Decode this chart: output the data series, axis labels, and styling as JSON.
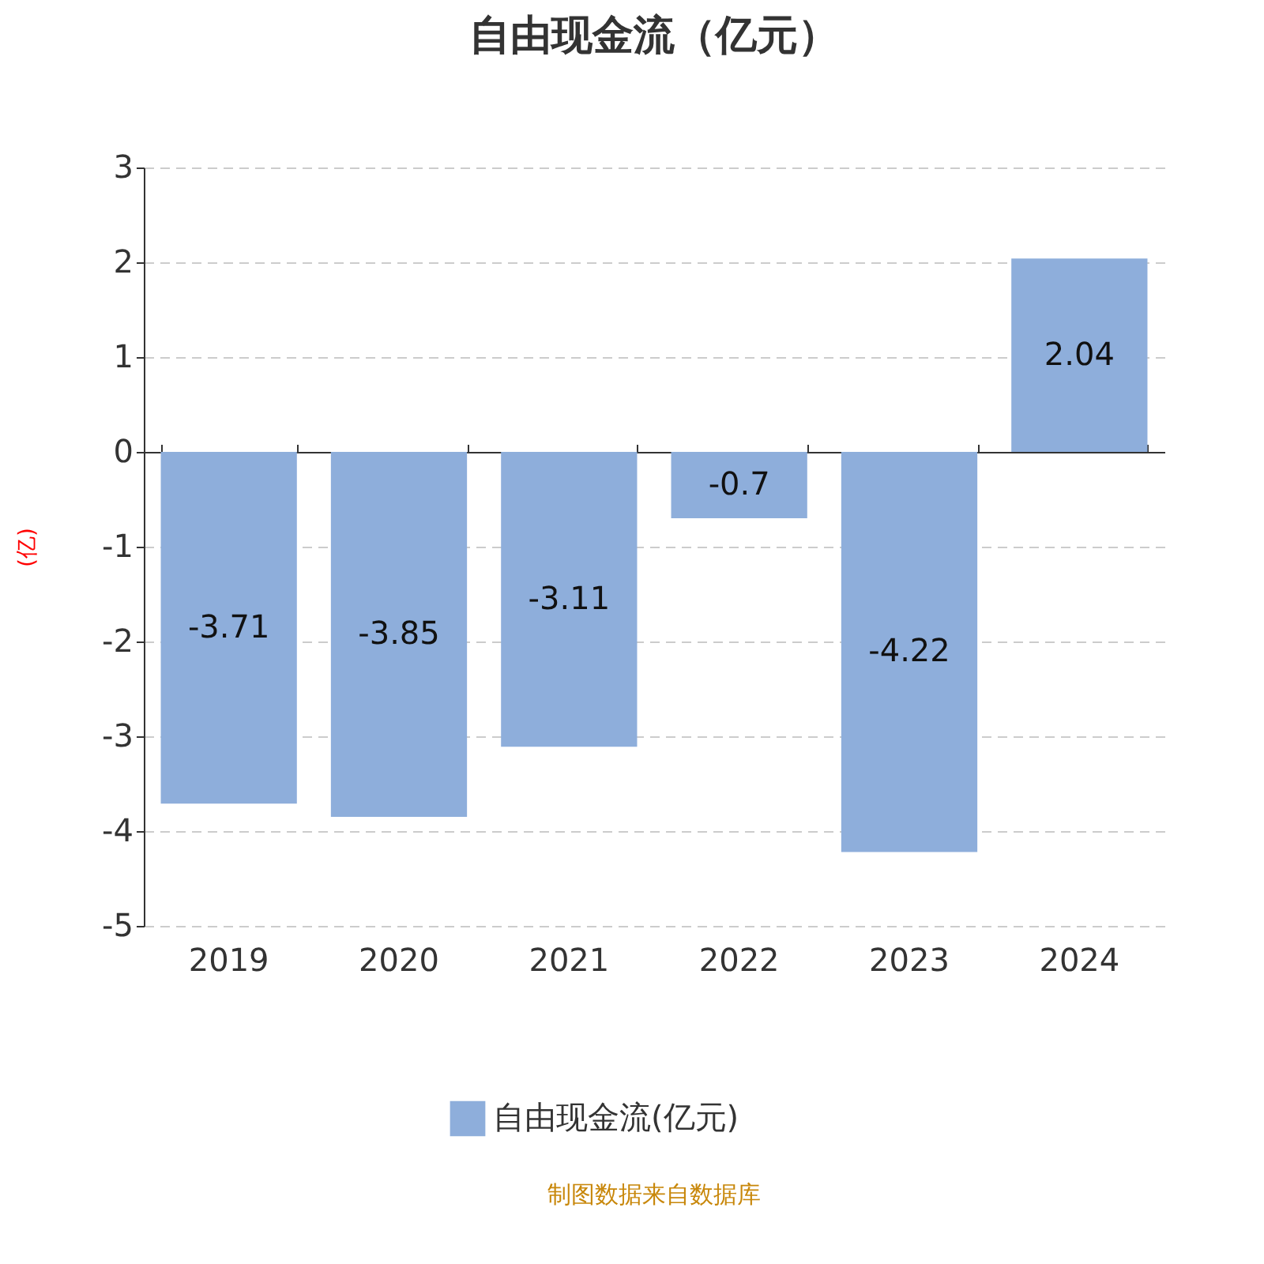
{
  "chart_data": {
    "type": "bar",
    "title": "自由现金流（亿元）",
    "ylabel": "(亿)",
    "categories": [
      "2019",
      "2020",
      "2021",
      "2022",
      "2023",
      "2024"
    ],
    "series": [
      {
        "name": "自由现金流(亿元)",
        "color": "#8eaedb",
        "values": [
          -3.71,
          -3.85,
          -3.11,
          -0.7,
          -4.22,
          2.04
        ]
      }
    ],
    "ylim": [
      -5,
      3
    ],
    "yticks": [
      -5,
      -4,
      -3,
      -2,
      -1,
      0,
      1,
      2,
      3
    ],
    "grid": "y",
    "data_labels": true,
    "legend": "bottom",
    "annotations": [
      "制图数据来自数据库"
    ]
  }
}
